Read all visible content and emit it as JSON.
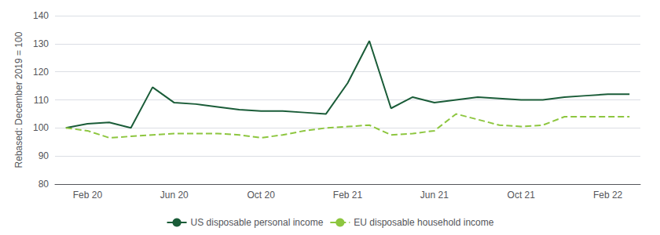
{
  "chart_data": {
    "type": "line",
    "ylabel": "Rebased: December 2019 = 100",
    "categories": [
      null,
      "Feb 20",
      null,
      null,
      null,
      "Jun 20",
      null,
      null,
      null,
      "Oct 20",
      null,
      null,
      null,
      "Feb 21",
      null,
      null,
      null,
      "Jun 21",
      null,
      null,
      null,
      "Oct 21",
      null,
      null,
      null,
      "Feb 22",
      null
    ],
    "series": [
      {
        "name": "US disposable personal income",
        "color": "#1a5c38",
        "line_style": "solid",
        "values": [
          100,
          101.5,
          102,
          100,
          114.5,
          109,
          108.5,
          107.5,
          106.5,
          106,
          106,
          105.5,
          105,
          116,
          131,
          107,
          111,
          109,
          110,
          111,
          110.5,
          110,
          110,
          111,
          111.5,
          112,
          112
        ]
      },
      {
        "name": "EU disposable household income",
        "color": "#8dc63f",
        "line_style": "dashed",
        "values": [
          100,
          99,
          96.5,
          97,
          97.5,
          98,
          98,
          98,
          97.5,
          96.5,
          97.5,
          99,
          100,
          100.5,
          101,
          97.5,
          98,
          99,
          105,
          103,
          101,
          100.5,
          101,
          104,
          104,
          104,
          104
        ]
      }
    ],
    "ylim": [
      80,
      140
    ],
    "yticks": [
      80,
      90,
      100,
      110,
      120,
      130,
      140
    ],
    "grid": true,
    "legend": "bottom"
  }
}
